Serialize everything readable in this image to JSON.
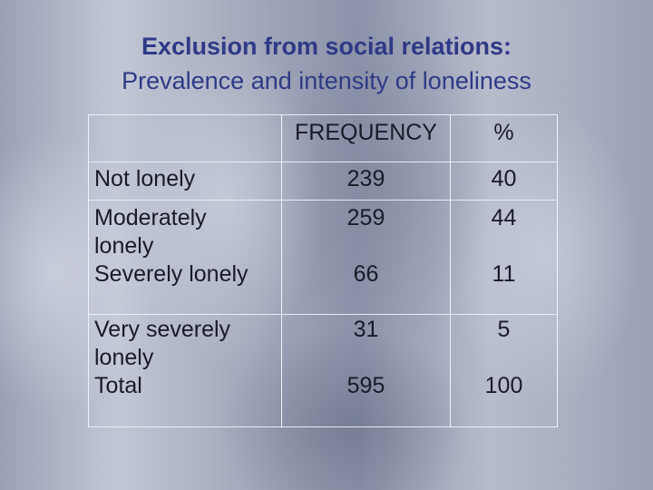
{
  "title": "Exclusion from social relations:",
  "subtitle": "Prevalence and intensity of loneliness",
  "table": {
    "headers": [
      "",
      "FREQUENCY",
      "%"
    ],
    "rows": [
      {
        "label": [
          "Not lonely"
        ],
        "frequency": "239",
        "percent": "40"
      },
      {
        "label": [
          "Moderately",
          "lonely"
        ],
        "frequency": "259",
        "percent": "44"
      },
      {
        "label": [
          "Severely lonely"
        ],
        "frequency": "66",
        "percent": "11"
      },
      {
        "label": [
          "Very severely",
          "lonely"
        ],
        "frequency": "31",
        "percent": "5"
      },
      {
        "label": [
          "Total"
        ],
        "frequency": "595",
        "percent": "100"
      }
    ]
  }
}
